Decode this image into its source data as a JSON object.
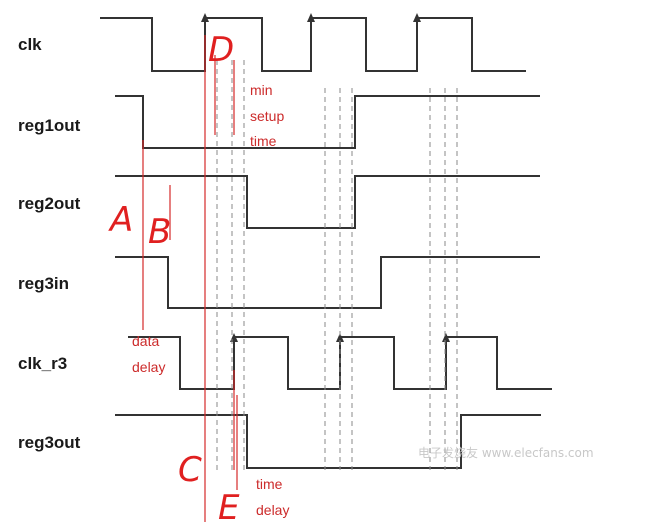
{
  "signals": {
    "clk": "clk",
    "reg1out": "reg1out",
    "reg2out": "reg2out",
    "reg3in": "reg3in",
    "clk_r3": "clk_r3",
    "reg3out": "reg3out"
  },
  "annotations": {
    "min": "min",
    "setup": "setup",
    "time_setup": "time",
    "data": "data",
    "delay_data": "delay",
    "time_delay": "time",
    "delay_time": "delay"
  },
  "markers": {
    "A": "A",
    "B": "B",
    "C": "C",
    "D": "D",
    "E": "E"
  },
  "watermark": "电子发烧友 www.elecfans.com",
  "colors": {
    "waveform": "#333333",
    "annotation_red": "#cc2b2b",
    "marker_red": "#e02020",
    "guide_dashed": "#888888"
  }
}
